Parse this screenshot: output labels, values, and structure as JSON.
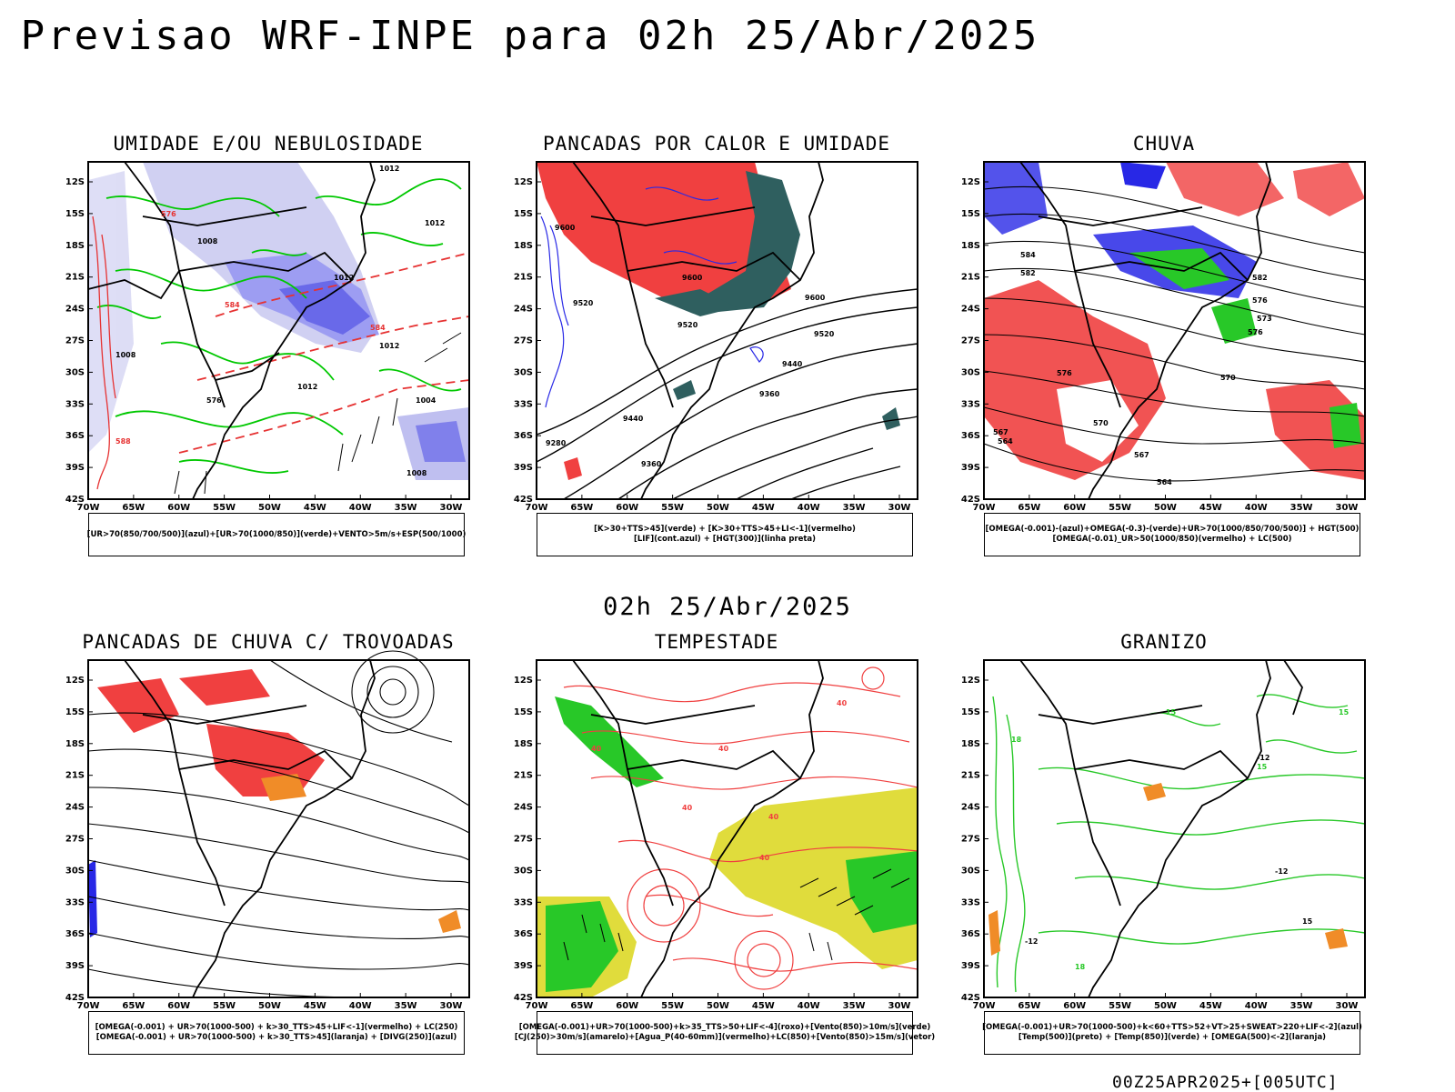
{
  "title": "Previsao WRF-INPE  para 02h 25/Abr/2025",
  "subtitle": "02h 25/Abr/2025",
  "footer": "00Z25APR2025+[005UTC]",
  "axes": {
    "lat_ticks": [
      "12S",
      "15S",
      "18S",
      "21S",
      "24S",
      "27S",
      "30S",
      "33S",
      "36S",
      "39S",
      "42S"
    ],
    "lon_ticks": [
      "70W",
      "65W",
      "60W",
      "55W",
      "50W",
      "45W",
      "40W",
      "35W",
      "30W"
    ]
  },
  "panels": [
    {
      "id": "umidade",
      "title": "UMIDADE E/OU NEBULOSIDADE",
      "legend": [
        "[UR>70(850/700/500)](azul)+[UR>70(1000/850)](verde)+VENTO>5m/s+ESP(500/1000)"
      ],
      "labels": [
        "1012",
        "1012",
        "1008",
        "1012",
        "1008",
        "1012",
        "1012",
        "1004",
        "1008",
        "576",
        "576",
        "584",
        "584",
        "588"
      ]
    },
    {
      "id": "pancadas-calor",
      "title": "PANCADAS POR CALOR E UMIDADE",
      "legend": [
        "[K>30+TTS>45](verde) + [K>30+TTS>45+LI<-1](vermelho)",
        "[LIF](cont.azul) + [HGT(300)](linha preta)"
      ],
      "labels": [
        "9600",
        "9600",
        "9520",
        "9520",
        "9600",
        "9520",
        "9440",
        "9360",
        "9440",
        "9280",
        "9360"
      ]
    },
    {
      "id": "chuva",
      "title": "CHUVA",
      "legend": [
        "[OMEGA(-0.001)-(azul)+OMEGA(-0.3)-(verde)+UR>70(1000/850/700/500)] + HGT(500)",
        "[OMEGA(-0.01)_UR>50(1000/850)(vermelho) + LC(500)"
      ],
      "labels": [
        "584",
        "582",
        "582",
        "576",
        "576",
        "576",
        "570",
        "570",
        "567",
        "564",
        "567",
        "564",
        "573"
      ]
    },
    {
      "id": "trovoadas",
      "title": "PANCADAS DE CHUVA C/ TROVOADAS",
      "legend": [
        "[OMEGA(-0.001) + UR>70(1000-500) + k>30_TTS>45+LIF<-1](vermelho) + LC(250)",
        "[OMEGA(-0.001) + UR>70(1000-500) + k>30_TTS>45](laranja) + [DIVG(250)](azul)"
      ],
      "labels": []
    },
    {
      "id": "tempestade",
      "title": "TEMPESTADE",
      "legend": [
        "[OMEGA(-0.001)+UR>70(1000-500)+k>35_TTS>50+LIF<-4](roxo)+[Vento(850)>10m/s](verde)",
        "[CJ(250)>30m/s](amarelo)+[Agua_P(40-60mm)](vermelho)+LC(850)+[Vento(850)>15m/s](vetor)"
      ],
      "labels": [
        "40",
        "40",
        "40",
        "40",
        "40",
        "40"
      ]
    },
    {
      "id": "granizo",
      "title": "GRANIZO",
      "legend": [
        "[OMEGA(-0.001)+UR>70(1000-500)+k<60+TTS>52+VT>25+SWEAT>220+LIF<-2](azul)",
        "[Temp(500)](preto) + [Temp(850)](verde) + [OMEGA(500)<-2](laranja)"
      ],
      "labels": [
        "-12",
        "-12",
        "-12",
        "15",
        "15",
        "15",
        "18",
        "18",
        "15"
      ]
    }
  ]
}
